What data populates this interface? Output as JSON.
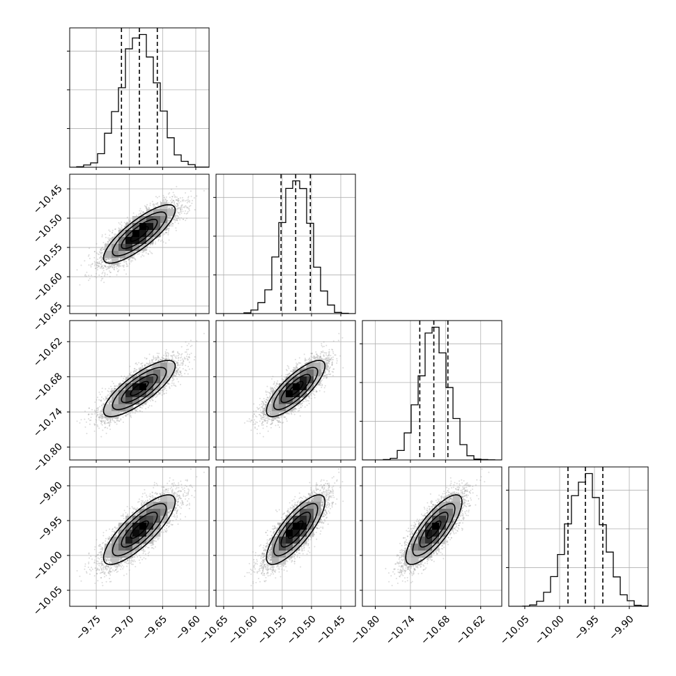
{
  "chart_data": {
    "type": "corner",
    "grid": true,
    "params": [
      {
        "mean": -9.685,
        "sd": 0.027,
        "q16": -9.712,
        "q50": -9.685,
        "q84": -9.658,
        "range": [
          -9.79,
          -9.58
        ],
        "ticks": [
          "-9.75",
          "-9.70",
          "-9.65",
          "-9.60"
        ]
      },
      {
        "mean": -10.527,
        "sd": 0.025,
        "q16": -10.552,
        "q50": -10.527,
        "q84": -10.502,
        "range": [
          -10.663,
          -10.425
        ],
        "ticks": [
          "-10.65",
          "-10.60",
          "-10.55",
          "-10.50",
          "-10.45"
        ]
      },
      {
        "mean": -10.7,
        "sd": 0.024,
        "q16": -10.724,
        "q50": -10.7,
        "q84": -10.676,
        "range": [
          -10.822,
          -10.584
        ],
        "ticks": [
          "-10.80",
          "-10.74",
          "-10.68",
          "-10.62"
        ]
      },
      {
        "mean": -9.963,
        "sd": 0.025,
        "q16": -9.988,
        "q50": -9.963,
        "q84": -9.938,
        "range": [
          -10.073,
          -9.873
        ],
        "ticks": [
          "-10.05",
          "-10.00",
          "-9.95",
          "-9.90"
        ]
      }
    ],
    "correlation": [
      [
        1.0,
        0.82,
        0.8,
        0.81
      ],
      [
        0.82,
        1.0,
        0.8,
        0.8
      ],
      [
        0.8,
        0.8,
        1.0,
        0.8
      ],
      [
        0.81,
        0.8,
        0.8,
        1.0
      ]
    ]
  }
}
